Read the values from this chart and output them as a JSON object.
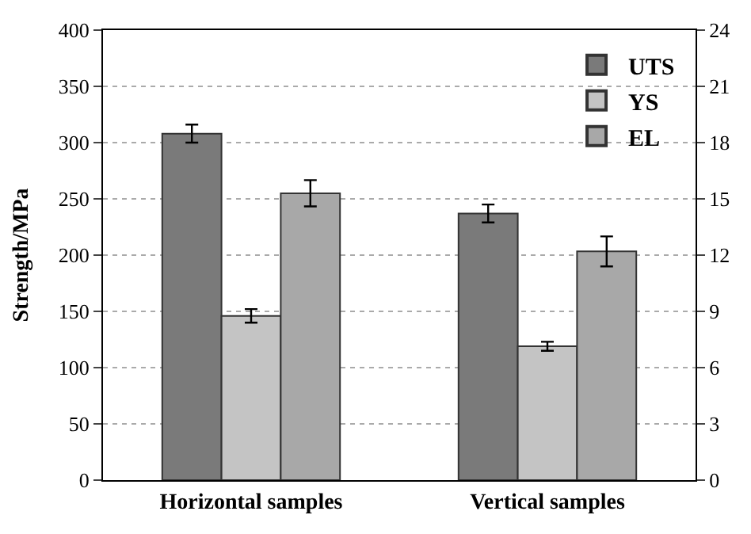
{
  "chart_data": {
    "type": "bar",
    "ylabel": "Strength/MPa",
    "categories": [
      "Horizontal samples",
      "Vertical samples"
    ],
    "series": [
      {
        "name": "UTS",
        "color": "#7a7a7a",
        "values": [
          308,
          237
        ],
        "errors": [
          8,
          8
        ]
      },
      {
        "name": "YS",
        "color": "#c4c4c4",
        "values": [
          146,
          119
        ],
        "errors": [
          6,
          4
        ]
      },
      {
        "name": "EL",
        "color": "#a8a8a8",
        "values": [
          15.3,
          12.2
        ],
        "errors": [
          0.7,
          0.8
        ],
        "axis": "y2"
      }
    ],
    "ylim": [
      0,
      400
    ],
    "yticks": [
      0,
      50,
      100,
      150,
      200,
      250,
      300,
      350,
      400
    ],
    "y2lim": [
      0,
      24
    ],
    "y2ticks": [
      0,
      3,
      6,
      9,
      12,
      15,
      18,
      21,
      24
    ],
    "grid": "y",
    "legend": "top right"
  }
}
